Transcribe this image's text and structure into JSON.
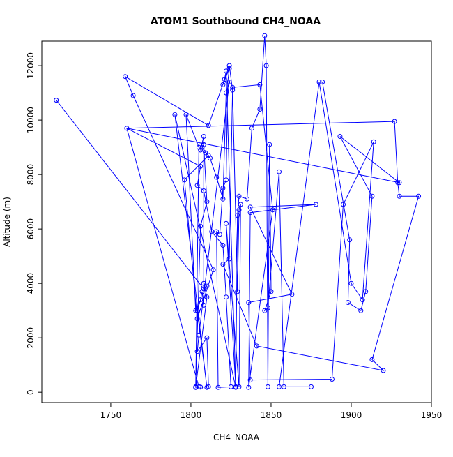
{
  "chart_data": {
    "type": "line",
    "title": "ATOM1 Southbound CH4_NOAA",
    "xlabel": "CH4_NOAA",
    "ylabel": "Altitude (m)",
    "xlim": [
      1707,
      1950
    ],
    "ylim": [
      -380,
      12900
    ],
    "x_ticks": [
      1750,
      1800,
      1850,
      1900,
      1950
    ],
    "y_ticks": [
      0,
      2000,
      4000,
      6000,
      8000,
      10000,
      12000
    ],
    "grid": false,
    "color": "#0000ff",
    "marker": "open-circle",
    "series": [
      {
        "x": [
          1716,
          1808,
          1810,
          1808,
          1810,
          1803,
          1806,
          1811,
          1810,
          1804,
          1805,
          1824,
          1822,
          1820,
          1816,
          1812,
          1807,
          1808,
          1810,
          1806,
          1803,
          1805,
          1760,
          1806,
          1804,
          1808,
          1813,
          1820,
          1822,
          1825,
          1817,
          1816,
          1818,
          1820,
          1822,
          1823,
          1824,
          1820,
          1821,
          1822,
          1828,
          1829,
          1830,
          1835,
          1838,
          1843,
          1846,
          1847,
          1848,
          1849,
          1850,
          1846,
          1848,
          1855,
          1858,
          1875,
          1855,
          1880,
          1900,
          1907,
          1914,
          1895,
          1888,
          1837,
          1836,
          1863,
          1837,
          1878,
          1837,
          1836,
          1851,
          1843,
          1826,
          1829,
          1830,
          1831,
          1830,
          1822,
          1828,
          1790,
          1810,
          1804,
          1803,
          1805,
          1797,
          1803,
          1804,
          1806,
          1807,
          1808,
          1808,
          1806,
          1809,
          1811,
          1796,
          1804,
          1814,
          1764,
          1759,
          1811,
          1824,
          1826,
          1824,
          1820,
          1841,
          1920,
          1913,
          1942,
          1930,
          1929,
          1927,
          1760,
          1930,
          1893,
          1913,
          1909,
          1906,
          1898,
          1899,
          1882
        ],
        "y": [
          10730,
          3800,
          3900,
          4000,
          3500,
          180,
          190,
          200,
          2000,
          1500,
          2100,
          11400,
          11000,
          7100,
          7900,
          8600,
          9000,
          9100,
          7000,
          6100,
          180,
          200,
          9700,
          8300,
          7600,
          7400,
          5900,
          5400,
          3500,
          200,
          180,
          5900,
          5800,
          7500,
          7800,
          11400,
          11900,
          11300,
          11500,
          11800,
          200,
          6500,
          7200,
          7100,
          9700,
          10400,
          13100,
          12000,
          200,
          9100,
          3700,
          3000,
          3100,
          8100,
          200,
          200,
          200,
          11400,
          4000,
          3400,
          9200,
          6900,
          480,
          450,
          3300,
          3600,
          6800,
          6900,
          6600,
          180,
          6700,
          11300,
          11200,
          3700,
          6700,
          6900,
          200,
          6200,
          180,
          10200,
          180,
          3000,
          200,
          9000,
          10200,
          3000,
          3000,
          3400,
          3700,
          3200,
          9400,
          8900,
          8800,
          8700,
          7800,
          2700,
          4500,
          10900,
          11600,
          9800,
          12000,
          11100,
          4900,
          4700,
          1700,
          800,
          1200,
          7200,
          7200,
          7700,
          9950,
          9700,
          7700,
          9400,
          7200,
          3700,
          3000,
          3300,
          5600,
          11400
        ]
      }
    ]
  }
}
